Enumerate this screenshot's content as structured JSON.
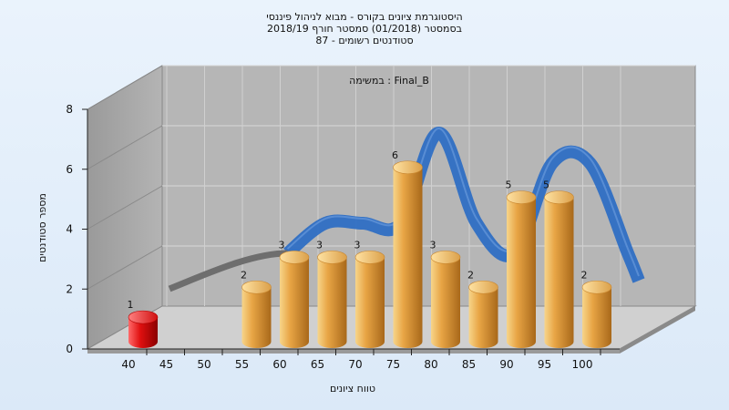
{
  "chart_data": {
    "type": "bar",
    "title_lines": [
      "היסטוגרמת ציונים בקורס - מבוא לניהול פיננסי",
      "בסמסטר  (01/2018)  סמסטר חורף 2018/19",
      "סטודנטים רשומים - 87"
    ],
    "subtitle": "במשימה : Final_B",
    "xlabel": "טווח ציונים",
    "ylabel": "מספר סטודנטים",
    "x_ticks": [
      "40",
      "45",
      "50",
      "55",
      "60",
      "65",
      "70",
      "75",
      "80",
      "85",
      "90",
      "95",
      "100"
    ],
    "y_ticks": [
      "0",
      "2",
      "4",
      "6",
      "8"
    ],
    "ylim": [
      0,
      8
    ],
    "grid": true,
    "categories": [
      "40",
      "55",
      "60",
      "65",
      "70",
      "75",
      "80",
      "85",
      "90",
      "95",
      "100"
    ],
    "values": [
      1,
      2,
      3,
      3,
      3,
      6,
      3,
      2,
      5,
      5,
      2
    ],
    "bar_colors": [
      "#e01010",
      "#e09a30",
      "#e09a30",
      "#e09a30",
      "#e09a30",
      "#e09a30",
      "#e09a30",
      "#e09a30",
      "#e09a30",
      "#e09a30",
      "#e09a30"
    ],
    "trend_color": "#2f6fc4"
  }
}
